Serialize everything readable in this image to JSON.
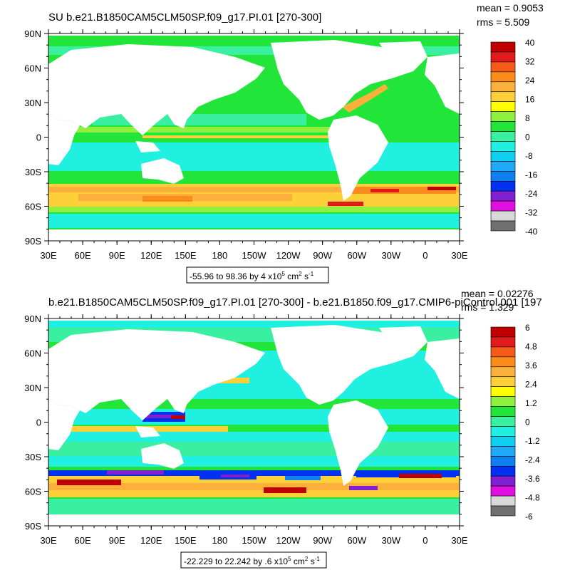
{
  "panels": [
    {
      "id": "top",
      "title": "SU b.e21.B1850CAM5CLM50SP.f09_g17.PI.01 [270-300]",
      "stats": {
        "mean": "mean = 0.9053",
        "rms": "rms = 5.509"
      },
      "lat_labels": [
        "90N",
        "60N",
        "30N",
        "0",
        "30S",
        "60S",
        "90S"
      ],
      "lon_labels": [
        "30E",
        "60E",
        "90E",
        "120E",
        "150E",
        "180",
        "150W",
        "120W",
        "90W",
        "60W",
        "30W",
        "0",
        "30E"
      ],
      "contour_info": {
        "text": "-55.96 to 98.36 by 4 x10",
        "exp": "5",
        "unit": "cm",
        "unit_exp": "2",
        "s": "s",
        "s_exp": "-1"
      },
      "colorbar_labels": [
        "40",
        "32",
        "24",
        "16",
        "8",
        "0",
        "-8",
        "-16",
        "-24",
        "-32",
        "-40"
      ],
      "colorbar_colors": [
        "#c00000",
        "#e31a1c",
        "#f55a1a",
        "#fa8c1e",
        "#fbb03b",
        "#fdd03a",
        "#ffff00",
        "#90f040",
        "#22e53a",
        "#38f0a0",
        "#20f0e0",
        "#10d0f0",
        "#20a8f5",
        "#1080f0",
        "#0030f0",
        "#8020d0",
        "#e010e0",
        "#d8d8d8",
        "#707070"
      ]
    },
    {
      "id": "bottom",
      "title": "b.e21.B1850CAM5CLM50SP.f09_g17.PI.01 [270-300] - b.e21.B1850.f09_g17.CMIP6-piControl.001 [197",
      "stats": {
        "mean": "mean = 0.02276",
        "rms": "rms = 1.329"
      },
      "lat_labels": [
        "90N",
        "60N",
        "30N",
        "0",
        "30S",
        "60S",
        "90S"
      ],
      "lon_labels": [
        "30E",
        "60E",
        "90E",
        "120E",
        "150E",
        "180",
        "150W",
        "120W",
        "90W",
        "60W",
        "30W",
        "0",
        "30E"
      ],
      "contour_info": {
        "text": "-22.229 to 22.242 by .6 x10",
        "exp": "5",
        "unit": "cm",
        "unit_exp": "2",
        "s": "s",
        "s_exp": "-1"
      },
      "colorbar_labels": [
        "6",
        "4.8",
        "3.6",
        "2.4",
        "1.2",
        "0",
        "-1.2",
        "-2.4",
        "-3.6",
        "-4.8",
        "-6"
      ],
      "colorbar_colors": [
        "#c00000",
        "#e31a1c",
        "#f55a1a",
        "#fa8c1e",
        "#fbb03b",
        "#fdd03a",
        "#ffff00",
        "#90f040",
        "#22e53a",
        "#38f0a0",
        "#20f0e0",
        "#10d0f0",
        "#20a8f5",
        "#1080f0",
        "#0030f0",
        "#8020d0",
        "#e010e0",
        "#d8d8d8",
        "#707070"
      ]
    }
  ]
}
